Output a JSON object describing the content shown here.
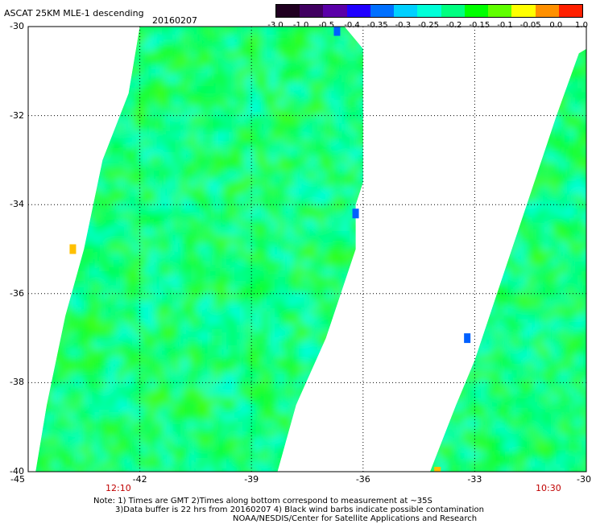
{
  "header": {
    "title": "ASCAT 25KM MLE-1 descending",
    "date": "20160207"
  },
  "colorbar": {
    "labels": [
      "-3.0",
      "-1.0",
      "-0.5",
      "-0.4",
      "-0.35",
      "-0.3",
      "-0.25",
      "-0.2",
      "-0.15",
      "-0.1",
      "-0.05",
      "0.0",
      "1.0"
    ],
    "colors": [
      "#200020",
      "#400060",
      "#5a00a8",
      "#2000ff",
      "#0070ff",
      "#00d0ff",
      "#00ffd8",
      "#00ff80",
      "#00ff00",
      "#60ff00",
      "#ffff00",
      "#ff9000",
      "#ff2000"
    ]
  },
  "axes": {
    "y_labels": [
      "-30",
      "-32",
      "-34",
      "-36",
      "-38",
      "-40"
    ],
    "x_labels": [
      "-45",
      "-42",
      "-39",
      "-36",
      "-33",
      "-30"
    ],
    "time_labels": [
      "12:10",
      "10:30"
    ],
    "time_color": "#c00000"
  },
  "chart_data": {
    "type": "heatmap",
    "xlim": [
      -45,
      -30
    ],
    "ylim": [
      -40,
      -30
    ],
    "grid": true,
    "swaths": [
      {
        "polygon": [
          [
            -42.0,
            -30.0
          ],
          [
            -41.0,
            -30.0
          ],
          [
            -38.5,
            -30.0
          ],
          [
            -36.5,
            -30.0
          ],
          [
            -36.0,
            -30.5
          ],
          [
            -36.0,
            -33.5
          ],
          [
            -36.2,
            -34.0
          ],
          [
            -36.2,
            -35.0
          ],
          [
            -37.0,
            -37.0
          ],
          [
            -37.8,
            -38.5
          ],
          [
            -38.3,
            -40.0
          ],
          [
            -44.8,
            -40.0
          ],
          [
            -44.5,
            -38.5
          ],
          [
            -44.0,
            -36.5
          ],
          [
            -43.5,
            -35.0
          ],
          [
            -43.0,
            -33.0
          ],
          [
            -42.3,
            -31.5
          ]
        ]
      },
      {
        "polygon": [
          [
            -30.0,
            -30.5
          ],
          [
            -30.0,
            -40.0
          ],
          [
            -34.2,
            -40.0
          ],
          [
            -33.5,
            -38.5
          ],
          [
            -33.0,
            -37.5
          ],
          [
            -32.4,
            -36.0
          ],
          [
            -31.6,
            -34.0
          ],
          [
            -30.8,
            -32.0
          ],
          [
            -30.2,
            -30.6
          ]
        ]
      }
    ],
    "anomalies": [
      {
        "lon": -36.2,
        "lat": -34.2,
        "value": -0.4
      },
      {
        "lon": -36.7,
        "lat": -30.1,
        "value": -0.4
      },
      {
        "lon": -43.8,
        "lat": -35.0,
        "value": -0.05
      },
      {
        "lon": -33.2,
        "lat": -37.0,
        "value": -0.4
      },
      {
        "lon": -34.0,
        "lat": -40.0,
        "value": -0.05
      }
    ]
  },
  "notes": {
    "line1": "Note: 1) Times are GMT 2)Times along bottom correspond to measurement at ~35S",
    "line2": "3)Data buffer is 22 hrs from 20160207 4) Black wind barbs indicate possible contamination",
    "line3": "NOAA/NESDIS/Center for Satellite Applications and Research"
  }
}
